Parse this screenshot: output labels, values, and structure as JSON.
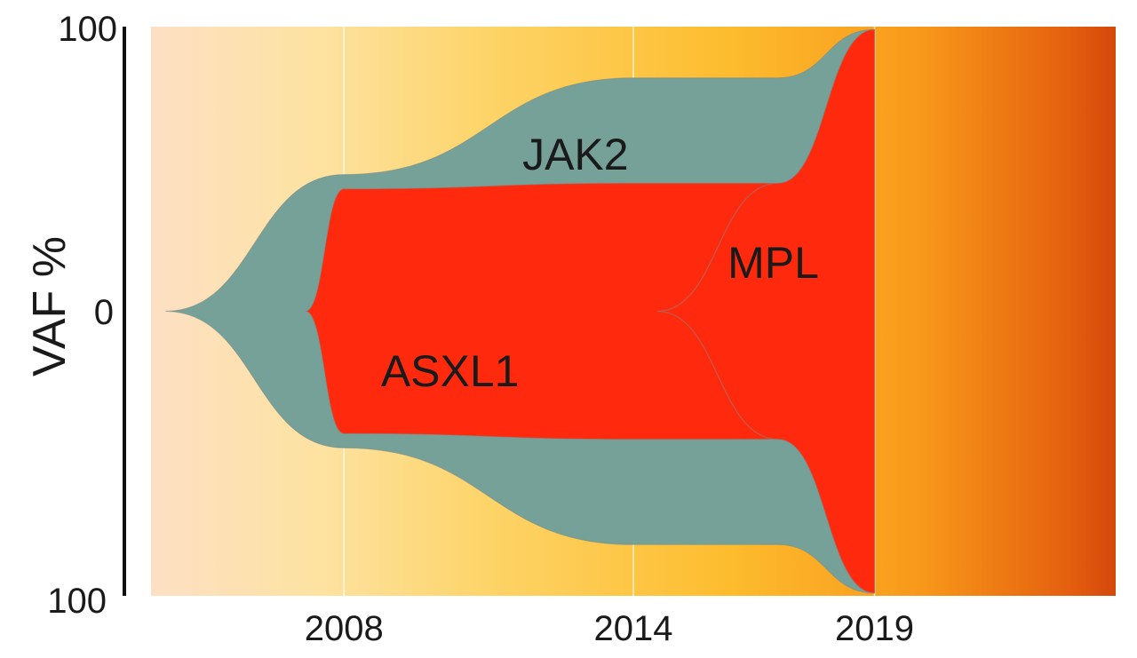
{
  "chart_data": {
    "type": "area",
    "subtype": "fish-plot (clonal evolution)",
    "ylabel": "VAF %",
    "y_ticks": [
      "100",
      "0",
      "100"
    ],
    "x_ticks": [
      2008,
      2014,
      2019
    ],
    "xlim": [
      2004,
      2024
    ],
    "ylim": [
      -100,
      100
    ],
    "vertical_gridlines_at": [
      2008,
      2014,
      2019
    ],
    "background": "gradient from pale peach (left) through yellow/orange to dark orange-red (right)",
    "series": [
      {
        "name": "JAK2",
        "color": "#76a198",
        "points": [
          {
            "year": 2004.3,
            "vaf": 0
          },
          {
            "year": 2008,
            "vaf": 48
          },
          {
            "year": 2014,
            "vaf": 82
          },
          {
            "year": 2017,
            "vaf": 82
          },
          {
            "year": 2019,
            "vaf": 99
          }
        ]
      },
      {
        "name": "ASXL1",
        "color": "#ff2a0e",
        "points": [
          {
            "year": 2007.2,
            "vaf": 0
          },
          {
            "year": 2008,
            "vaf": 43
          },
          {
            "year": 2014,
            "vaf": 45
          },
          {
            "year": 2017,
            "vaf": 45
          },
          {
            "year": 2019,
            "vaf": 99
          }
        ]
      },
      {
        "name": "MPL",
        "color": "#ff2a0e",
        "points": [
          {
            "year": 2014.5,
            "vaf": 0
          },
          {
            "year": 2017,
            "vaf": 45
          },
          {
            "year": 2019,
            "vaf": 99
          }
        ]
      }
    ]
  }
}
